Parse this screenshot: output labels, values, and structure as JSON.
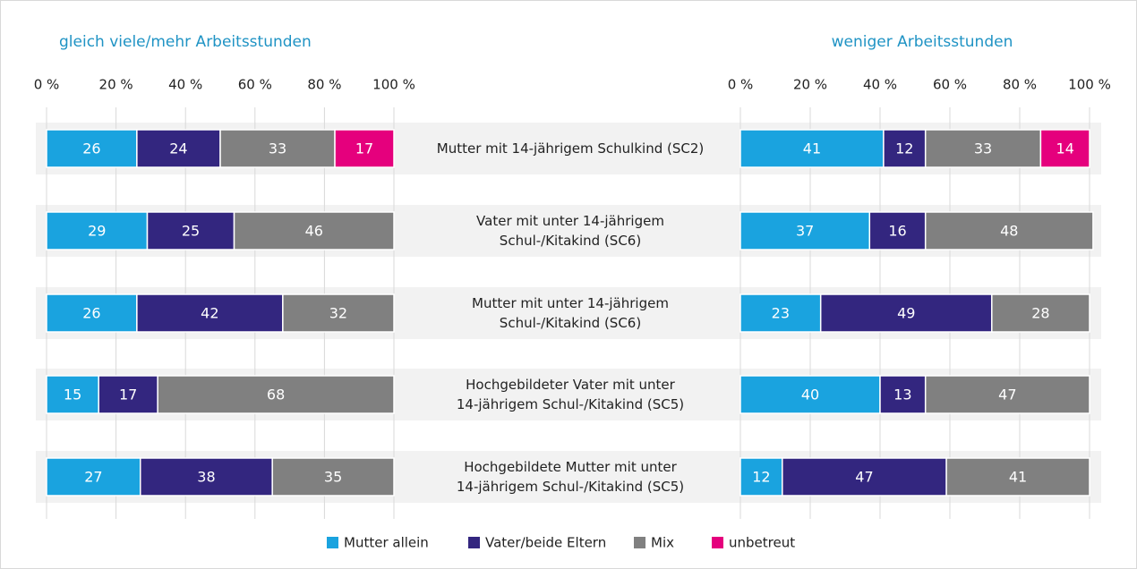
{
  "chart_data": {
    "type": "stacked_barh",
    "categories": [
      [
        "Mutter mit 14-jährigem Schulkind (SC2)"
      ],
      [
        "Vater mit unter 14-jährigem",
        "Schul-/Kitakind (SC6)"
      ],
      [
        "Mutter mit unter 14-jährigem",
        "Schul-/Kitakind (SC6)"
      ],
      [
        "Hochgebildeter Vater mit unter",
        "14-jährigem Schul-/Kitakind (SC5)"
      ],
      [
        "Hochgebildete Mutter mit unter",
        "14-jährigem Schul-/Kitakind (SC5)"
      ]
    ],
    "series": [
      {
        "name": "Mutter allein",
        "color": "#1aa3df"
      },
      {
        "name": "Vater/beide Eltern",
        "color": "#33267f"
      },
      {
        "name": "Mix",
        "color": "#808080"
      },
      {
        "name": "unbetreut",
        "color": "#e5007d"
      }
    ],
    "xlim": [
      0,
      100
    ],
    "xticks": [
      {
        "value": 0,
        "label": "0 %"
      },
      {
        "value": 20,
        "label": "20 %"
      },
      {
        "value": 40,
        "label": "40 %"
      },
      {
        "value": 60,
        "label": "60 %"
      },
      {
        "value": 80,
        "label": "80 %"
      },
      {
        "value": 100,
        "label": "100 %"
      }
    ],
    "grid": true,
    "panels": [
      {
        "title": "gleich viele/mehr Arbeitsstunden",
        "series": [
          {
            "values": [
              26,
              29,
              26,
              15,
              27
            ]
          },
          {
            "values": [
              24,
              25,
              42,
              17,
              38
            ]
          },
          {
            "values": [
              33,
              46,
              32,
              68,
              35
            ]
          },
          {
            "values": [
              17,
              null,
              null,
              null,
              null
            ]
          }
        ]
      },
      {
        "title": "weniger Arbeitsstunden",
        "series": [
          {
            "values": [
              41,
              37,
              23,
              40,
              12
            ]
          },
          {
            "values": [
              12,
              16,
              49,
              13,
              47
            ]
          },
          {
            "values": [
              33,
              48,
              28,
              47,
              41
            ]
          },
          {
            "values": [
              14,
              null,
              null,
              null,
              null
            ]
          }
        ]
      }
    ]
  }
}
